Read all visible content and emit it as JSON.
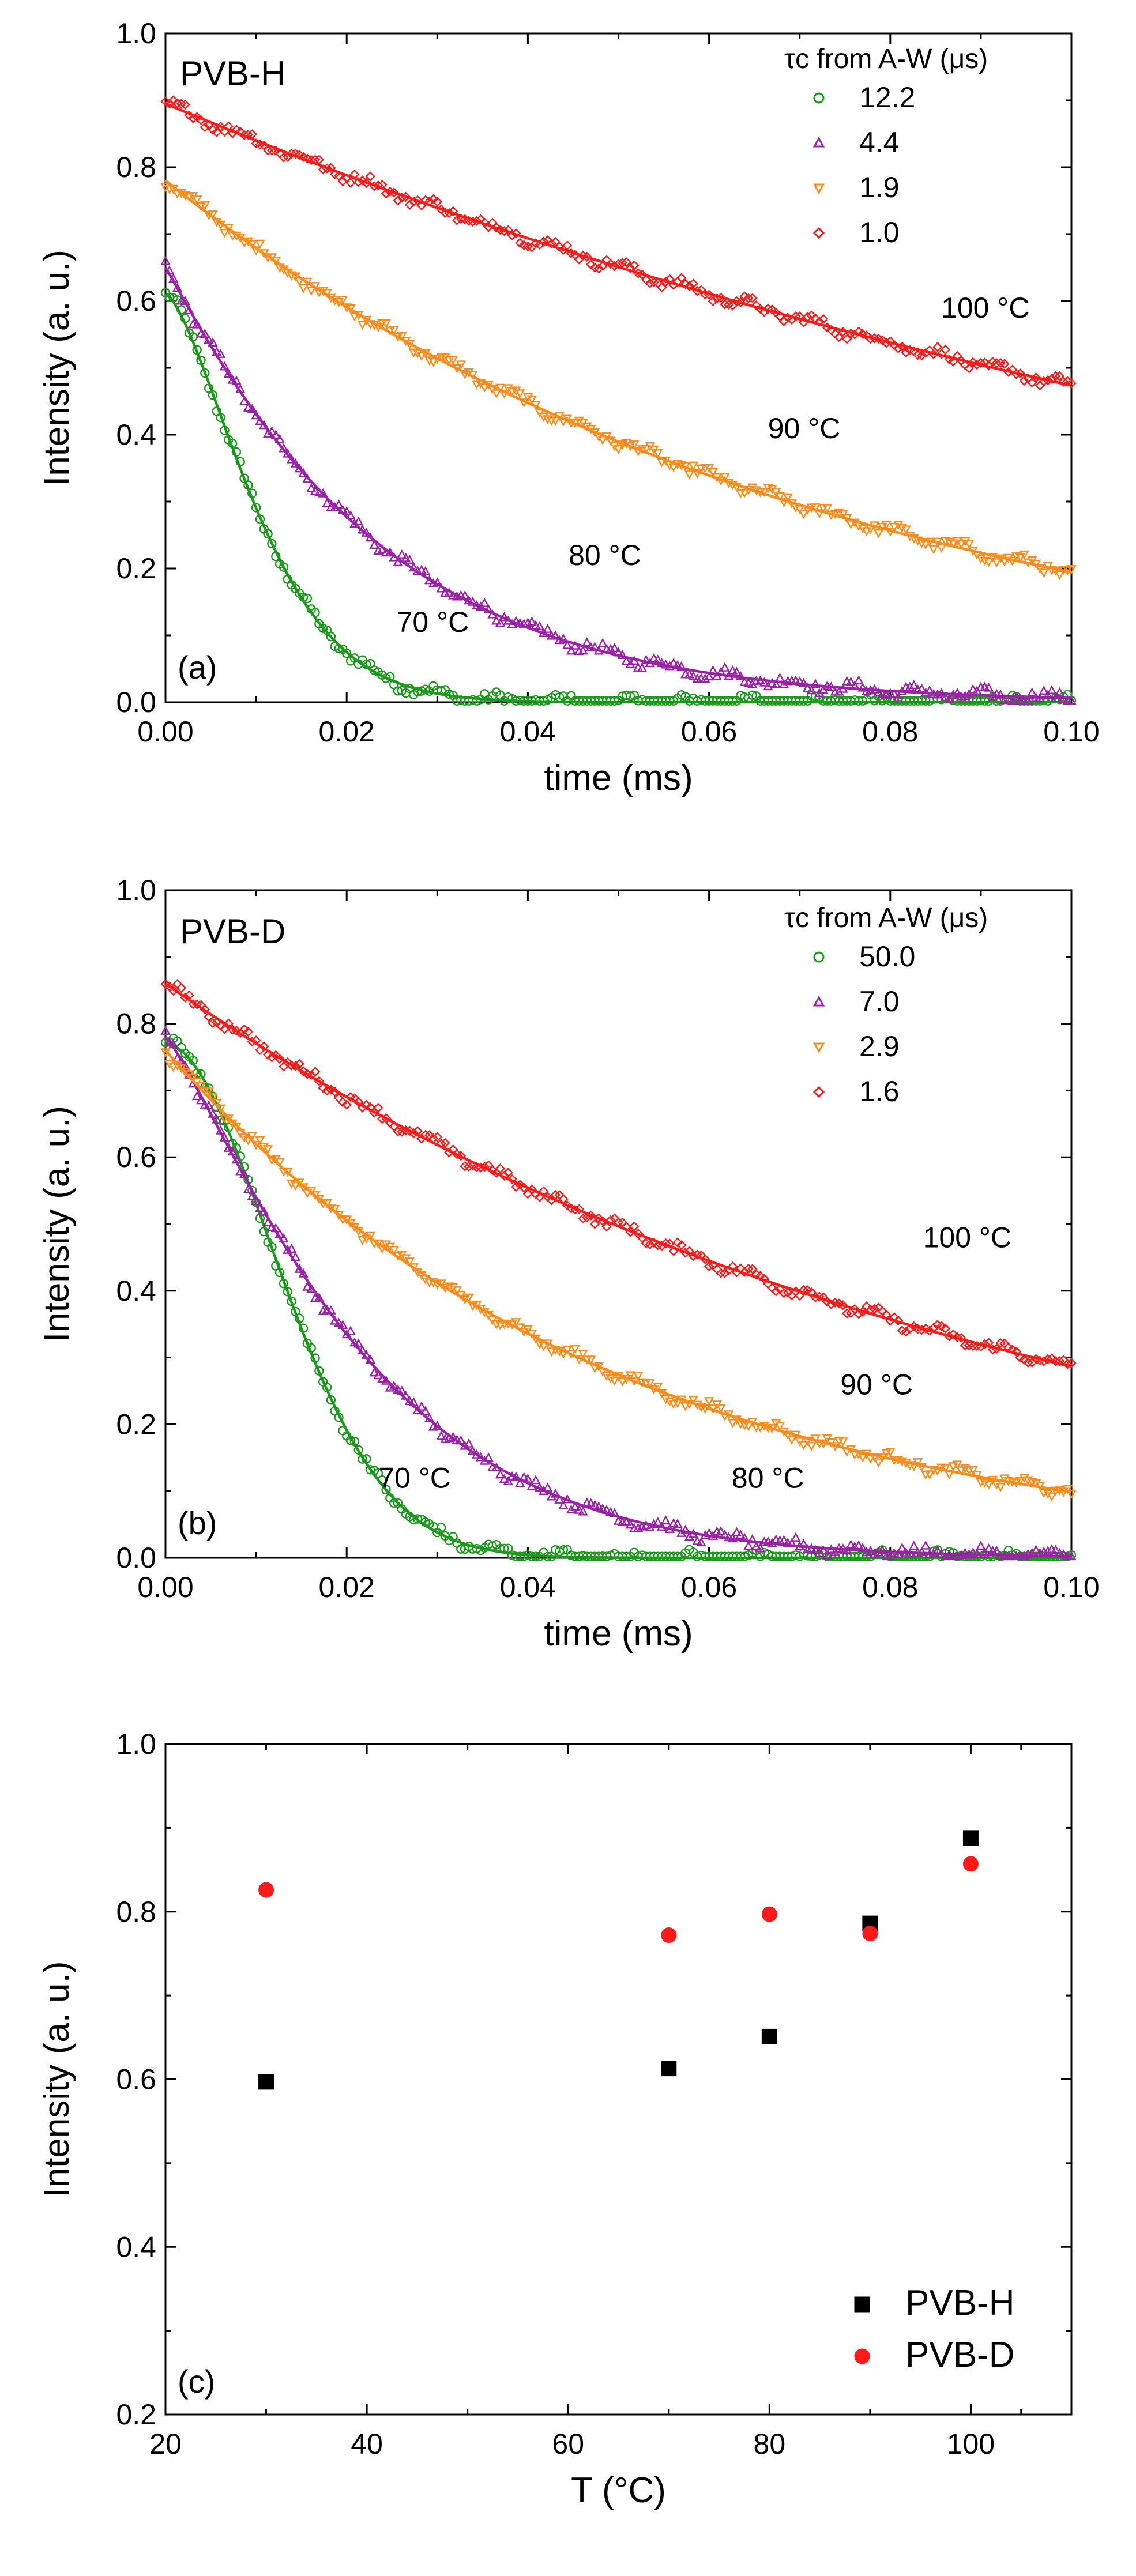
{
  "chart_data": [
    {
      "type": "line",
      "panel_label": "(a)",
      "sample_label": "PVB-H",
      "xlabel": "time (ms)",
      "ylabel": "Intensity (a. u.)",
      "xlim": [
        0,
        0.1
      ],
      "ylim": [
        0,
        1.0
      ],
      "xticks": [
        "0.00",
        "0.02",
        "0.04",
        "0.06",
        "0.08",
        "0.10"
      ],
      "yticks": [
        "0.0",
        "0.2",
        "0.4",
        "0.6",
        "0.8",
        "1.0"
      ],
      "legend_title": "τc from A-W (μs)",
      "series": [
        {
          "name": "12.2",
          "marker": "circle",
          "color": "#1a9a1a",
          "temp_label": "70 °C",
          "fit": {
            "A": 0.61,
            "tau_ms": 0.0122,
            "beta": 1.5
          },
          "temp_label_at": [
            0.0295,
            0.105
          ]
        },
        {
          "name": "4.4",
          "marker": "triangle-up",
          "color": "#9b22a8",
          "temp_label": "80 °C",
          "fit": {
            "A": 0.65,
            "tau_ms": 0.0233,
            "beta": 1.05
          },
          "temp_label_at": [
            0.0485,
            0.205
          ]
        },
        {
          "name": "1.9",
          "marker": "triangle-down",
          "color": "#ff8c1a",
          "temp_label": "90 °C",
          "fit": {
            "A": 0.78,
            "tau_ms": 0.072,
            "beta": 1.0
          },
          "temp_label_at": [
            0.0705,
            0.395
          ]
        },
        {
          "name": "1.0",
          "marker": "diamond",
          "color": "#ff1a1a",
          "temp_label": "100 °C",
          "fit": {
            "A": 0.895,
            "tau_ms": 0.157,
            "beta": 1.0
          },
          "temp_label_at": [
            0.0905,
            0.575
          ]
        }
      ]
    },
    {
      "type": "line",
      "panel_label": "(b)",
      "sample_label": "PVB-D",
      "xlabel": "time (ms)",
      "ylabel": "Intensity (a. u.)",
      "xlim": [
        0,
        0.1
      ],
      "ylim": [
        0,
        1.0
      ],
      "xticks": [
        "0.00",
        "0.02",
        "0.04",
        "0.06",
        "0.08",
        "0.10"
      ],
      "yticks": [
        "0.0",
        "0.2",
        "0.4",
        "0.6",
        "0.8",
        "1.0"
      ],
      "legend_title": "τc from A-W (μs)",
      "series": [
        {
          "name": "50.0",
          "marker": "circle",
          "color": "#1a9a1a",
          "temp_label": "70 °C",
          "fit": {
            "A": 0.77,
            "tau_ms": 0.0168,
            "beta": 1.9
          },
          "temp_label_at": [
            0.0275,
            0.105
          ]
        },
        {
          "name": "7.0",
          "marker": "triangle-up",
          "color": "#9b22a8",
          "temp_label": "80 °C",
          "fit": {
            "A": 0.78,
            "tau_ms": 0.023,
            "beta": 1.2
          },
          "temp_label_at": [
            0.0665,
            0.105
          ]
        },
        {
          "name": "2.9",
          "marker": "triangle-down",
          "color": "#ff8c1a",
          "temp_label": "90 °C",
          "fit": {
            "A": 0.76,
            "tau_ms": 0.049,
            "beta": 1.0
          },
          "temp_label_at": [
            0.0785,
            0.245
          ]
        },
        {
          "name": "1.6",
          "marker": "diamond",
          "color": "#ff1a1a",
          "temp_label": "100 °C",
          "fit": {
            "A": 0.86,
            "tau_ms": 0.091,
            "beta": 1.0
          },
          "temp_label_at": [
            0.0885,
            0.465
          ]
        }
      ]
    },
    {
      "type": "scatter",
      "panel_label": "(c)",
      "xlabel": "T (°C)",
      "ylabel": "Intensity (a. u.)",
      "xlim": [
        20,
        110
      ],
      "ylim": [
        0.2,
        1.0
      ],
      "xticks": [
        "20",
        "40",
        "60",
        "80",
        "100"
      ],
      "yticks": [
        "0.2",
        "0.4",
        "0.6",
        "0.8",
        "1.0"
      ],
      "series": [
        {
          "name": "PVB-H",
          "marker": "square",
          "color": "#000000",
          "x": [
            30,
            70,
            80,
            90,
            100
          ],
          "y": [
            0.597,
            0.613,
            0.651,
            0.786,
            0.888
          ]
        },
        {
          "name": "PVB-D",
          "marker": "circle",
          "color": "#ff1a1a",
          "x": [
            30,
            70,
            80,
            90,
            100
          ],
          "y": [
            0.826,
            0.772,
            0.797,
            0.774,
            0.857
          ]
        }
      ]
    }
  ]
}
